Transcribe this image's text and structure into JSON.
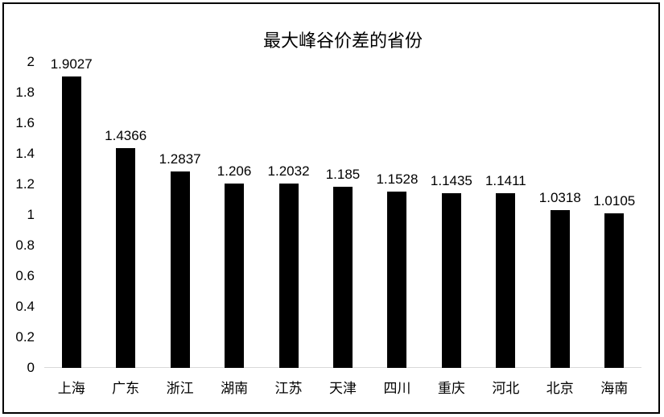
{
  "chart_data": {
    "type": "bar",
    "title": "最大峰谷价差的省份",
    "categories": [
      "上海",
      "广东",
      "浙江",
      "湖南",
      "江苏",
      "天津",
      "四川",
      "重庆",
      "河北",
      "北京",
      "海南"
    ],
    "values": [
      1.9027,
      1.4366,
      1.2837,
      1.206,
      1.2032,
      1.185,
      1.1528,
      1.1435,
      1.1411,
      1.0318,
      1.0105
    ],
    "data_labels": [
      "1.9027",
      "1.4366",
      "1.2837",
      "1.206",
      "1.2032",
      "1.185",
      "1.1528",
      "1.1435",
      "1.1411",
      "1.0318",
      "1.0105"
    ],
    "xlabel": "",
    "ylabel": "",
    "ylim": [
      0,
      2
    ],
    "ytick_values": [
      0,
      0.2,
      0.4,
      0.6,
      0.8,
      1,
      1.2,
      1.4,
      1.6,
      1.8,
      2
    ],
    "ytick_labels": [
      "0",
      "0.2",
      "0.4",
      "0.6",
      "0.8",
      "1",
      "1.2",
      "1.4",
      "1.6",
      "1.8",
      "2"
    ],
    "grid": false,
    "legend": false,
    "data_labels_position": "above-bar",
    "bar_color": "#000000",
    "baseline_color": "#d9d9d9",
    "text_color": "#000000",
    "border_color": "#000000",
    "background_color": "#ffffff"
  }
}
